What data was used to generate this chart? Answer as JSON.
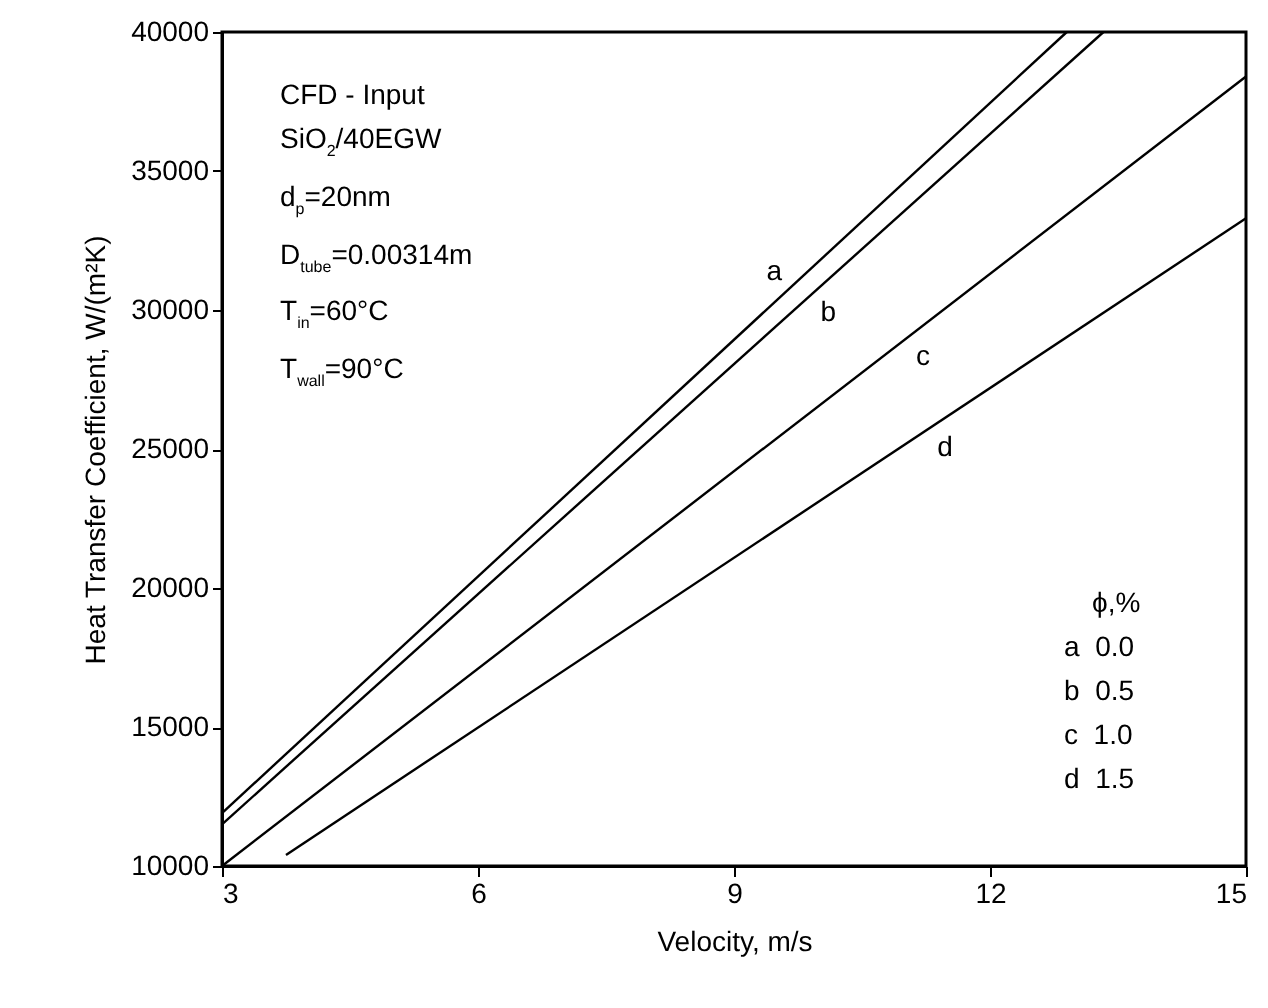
{
  "chart_data": {
    "type": "line",
    "xlabel": "Velocity, m/s",
    "ylabel": "Heat Transfer Coefficient, W/(m²K)",
    "legend_title": "ϕ,%",
    "xlim": [
      3,
      15
    ],
    "xticks": [
      3,
      6,
      9,
      12,
      15
    ],
    "ylim": [
      10000,
      40000
    ],
    "yticks": [
      10000,
      15000,
      20000,
      25000,
      30000,
      35000,
      40000
    ],
    "grid": false,
    "marker": "none",
    "line_style": "solid",
    "series": [
      {
        "name": "a",
        "color": "#000000",
        "x": [
          3,
          12.9
        ],
        "values": [
          11900,
          40000
        ]
      },
      {
        "name": "b",
        "color": "#000000",
        "x": [
          3,
          13.33
        ],
        "values": [
          11500,
          40000
        ]
      },
      {
        "name": "c",
        "color": "#000000",
        "x": [
          3,
          15
        ],
        "values": [
          10000,
          38400
        ]
      },
      {
        "name": "d",
        "color": "#000000",
        "x": [
          3.75,
          15
        ],
        "values": [
          10400,
          33300
        ]
      }
    ],
    "annotations": [
      "CFD - Input",
      "SiO$_{2}$/40EGW",
      "d$_{p}$=20nm",
      "D$_{tube}$=0.00314m",
      "T$_{in}$=60°C",
      "T$_{wall}$=90°C",
      "a  0.0",
      "b  0.5",
      "c  1.0",
      "d  1.5"
    ]
  }
}
